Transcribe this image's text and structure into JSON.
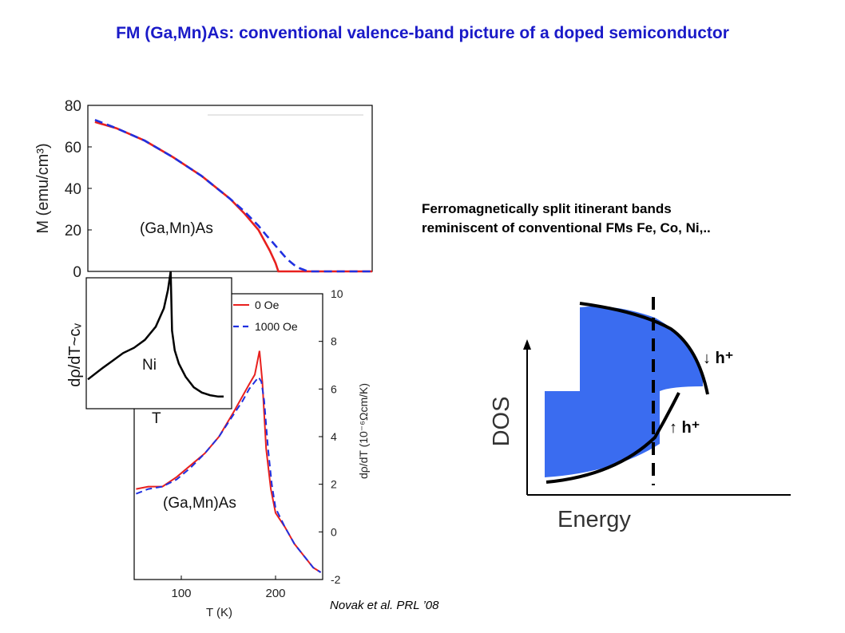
{
  "title": "FM (Ga,Mn)As: conventional valence-band picture of a doped semiconductor",
  "description": {
    "line1": "Ferromagnetically split itinerant bands",
    "line2": "reminiscent of  conventional FMs Fe, Co, Ni,.."
  },
  "citation": "Novak et al. PRL ’08",
  "colors": {
    "title": "#1a1ac8",
    "red": "#e8201e",
    "blue": "#2030e0",
    "dos_fill": "#3a6cf0"
  },
  "chart_data": [
    {
      "type": "line",
      "ylabel": "M   (emu/cm³)",
      "annotation": "(Ga,Mn)As",
      "ylim": [
        0,
        80
      ],
      "xlim": [
        50,
        250
      ],
      "yticks": [
        0,
        20,
        40,
        60,
        80
      ],
      "series": [
        {
          "name": "0 Oe",
          "color": "#e8201e",
          "dash": false,
          "x": [
            55,
            70,
            90,
            110,
            130,
            150,
            160,
            170,
            178,
            182,
            184,
            186,
            250
          ],
          "y": [
            72,
            69,
            63,
            55,
            46,
            35,
            28,
            20,
            10,
            4,
            0,
            0,
            0
          ]
        },
        {
          "name": "1000 Oe",
          "color": "#2030e0",
          "dash": true,
          "x": [
            55,
            70,
            90,
            110,
            130,
            150,
            160,
            170,
            176,
            180,
            185,
            190,
            197,
            205,
            250
          ],
          "y": [
            73,
            69,
            63,
            55,
            46,
            35,
            29,
            22,
            17,
            14,
            10,
            6,
            2,
            0,
            0
          ]
        }
      ]
    },
    {
      "type": "line",
      "xlabel": "T     (K)",
      "ylabel": "dρ/dT  (10⁻⁶Ωcm/K)",
      "annotation": "(Ga,Mn)As",
      "xlim": [
        50,
        250
      ],
      "ylim": [
        -2,
        10
      ],
      "xticks": [
        100,
        200
      ],
      "yticks": [
        -2,
        0,
        2,
        4,
        6,
        8,
        10
      ],
      "legend": {
        "position": "top-right",
        "entries": [
          "0 Oe",
          "1000 Oe"
        ]
      },
      "series": [
        {
          "name": "0 Oe",
          "color": "#e8201e",
          "dash": false,
          "x": [
            52,
            65,
            80,
            95,
            110,
            125,
            140,
            155,
            165,
            172,
            178,
            181,
            183,
            186,
            190,
            195,
            200,
            210,
            220,
            230,
            240,
            248
          ],
          "y": [
            1.8,
            1.9,
            1.9,
            2.3,
            2.8,
            3.3,
            4.0,
            5.0,
            5.7,
            6.2,
            6.6,
            7.2,
            7.6,
            6.3,
            3.5,
            1.8,
            0.8,
            0.2,
            -0.5,
            -1.0,
            -1.5,
            -1.7
          ]
        },
        {
          "name": "1000 Oe",
          "color": "#2030e0",
          "dash": true,
          "x": [
            52,
            65,
            80,
            95,
            110,
            125,
            140,
            155,
            165,
            172,
            178,
            182,
            185,
            188,
            192,
            196,
            200,
            210,
            220,
            230,
            240,
            248
          ],
          "y": [
            1.6,
            1.8,
            1.9,
            2.2,
            2.7,
            3.3,
            4.0,
            4.9,
            5.5,
            6.0,
            6.3,
            6.5,
            6.3,
            5.5,
            3.5,
            2.0,
            1.0,
            0.2,
            -0.5,
            -1.0,
            -1.5,
            -1.7
          ]
        }
      ]
    },
    {
      "type": "line",
      "inset": true,
      "xlabel": "T",
      "ylabel": "dρ/dT~cᵥ",
      "annotation": "Ni",
      "series": [
        {
          "name": "",
          "color": "#000000",
          "dash": false,
          "x": [
            0,
            10,
            18,
            26,
            34,
            42,
            50,
            56,
            59,
            61,
            62,
            64,
            67,
            72,
            78,
            84,
            90,
            96,
            100
          ],
          "y": [
            0.18,
            0.26,
            0.32,
            0.38,
            0.42,
            0.48,
            0.58,
            0.72,
            0.86,
            1.0,
            0.55,
            0.4,
            0.3,
            0.2,
            0.12,
            0.08,
            0.06,
            0.05,
            0.05
          ]
        }
      ]
    },
    {
      "type": "area",
      "xlabel": "Energy",
      "ylabel": "DOS",
      "labels": {
        "up": "↓ h⁺",
        "down": "↑ h⁺"
      },
      "fill_color": "#3a6cf0",
      "note": "schematic spin-split bands"
    }
  ]
}
